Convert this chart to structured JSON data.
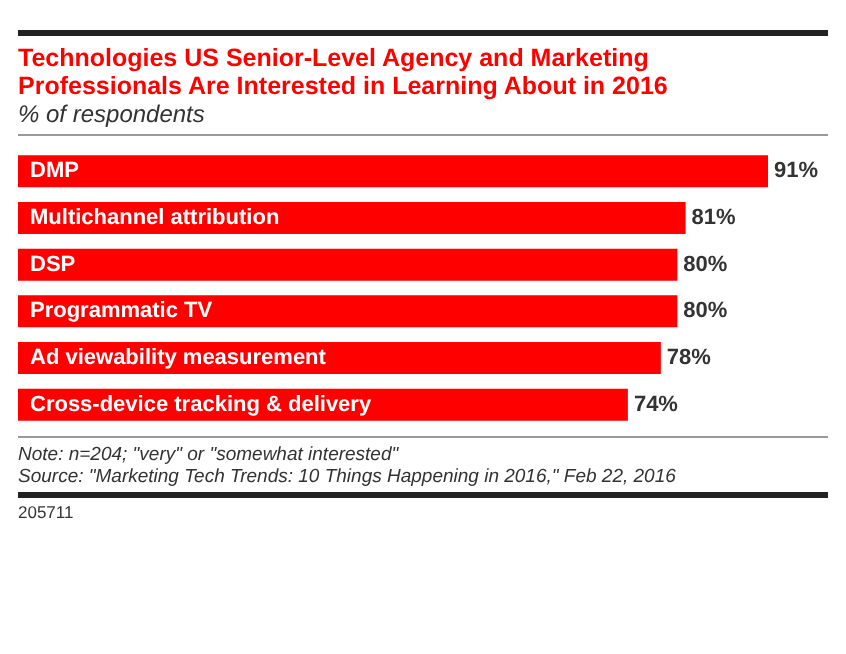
{
  "chart_data": {
    "type": "bar",
    "orientation": "horizontal",
    "title": "Technologies US Senior-Level Agency and Marketing Professionals Are Interested in Learning About in 2016",
    "subtitle": "% of respondents",
    "categories": [
      "DMP",
      "Multichannel attribution",
      "DSP",
      "Programmatic TV",
      "Ad viewability measurement",
      "Cross-device tracking & delivery"
    ],
    "values": [
      91,
      81,
      80,
      80,
      78,
      74
    ],
    "color": "#ff0000",
    "value_labels": [
      "91%",
      "81%",
      "80%",
      "80%",
      "78%",
      "74%"
    ],
    "annotations": [
      "Note: n=204; \"very\" or \"somewhat interested\"",
      "Source: \"Marketing Tech Trends: 10 Things Happening in 2016,\" Feb 22, 2016",
      "205711"
    ],
    "grid": false
  }
}
